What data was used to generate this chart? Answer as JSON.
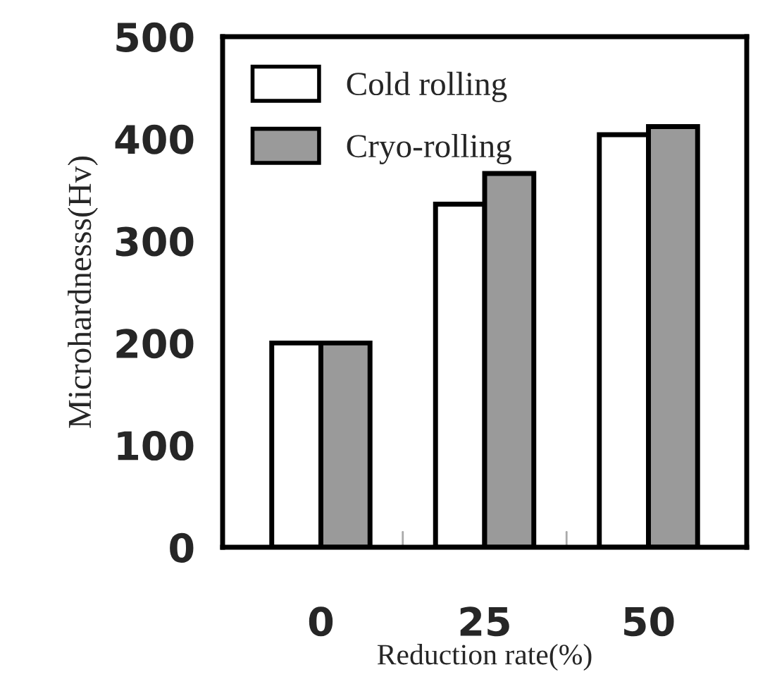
{
  "chart_data": {
    "type": "bar",
    "xlabel": "Reduction rate(%)",
    "ylabel": "Microhardnesss(Hv)",
    "categories": [
      "0",
      "25",
      "50"
    ],
    "series": [
      {
        "name": "Cold rolling",
        "color": "#ffffff",
        "values": [
          200,
          336,
          404
        ]
      },
      {
        "name": "Cryo-rolling",
        "color": "#9a9a9a",
        "values": [
          200,
          366,
          412
        ]
      }
    ],
    "ylim": [
      0,
      500
    ],
    "yticks": [
      0,
      100,
      200,
      300,
      400,
      500
    ],
    "grid": false,
    "legend": "top left"
  }
}
